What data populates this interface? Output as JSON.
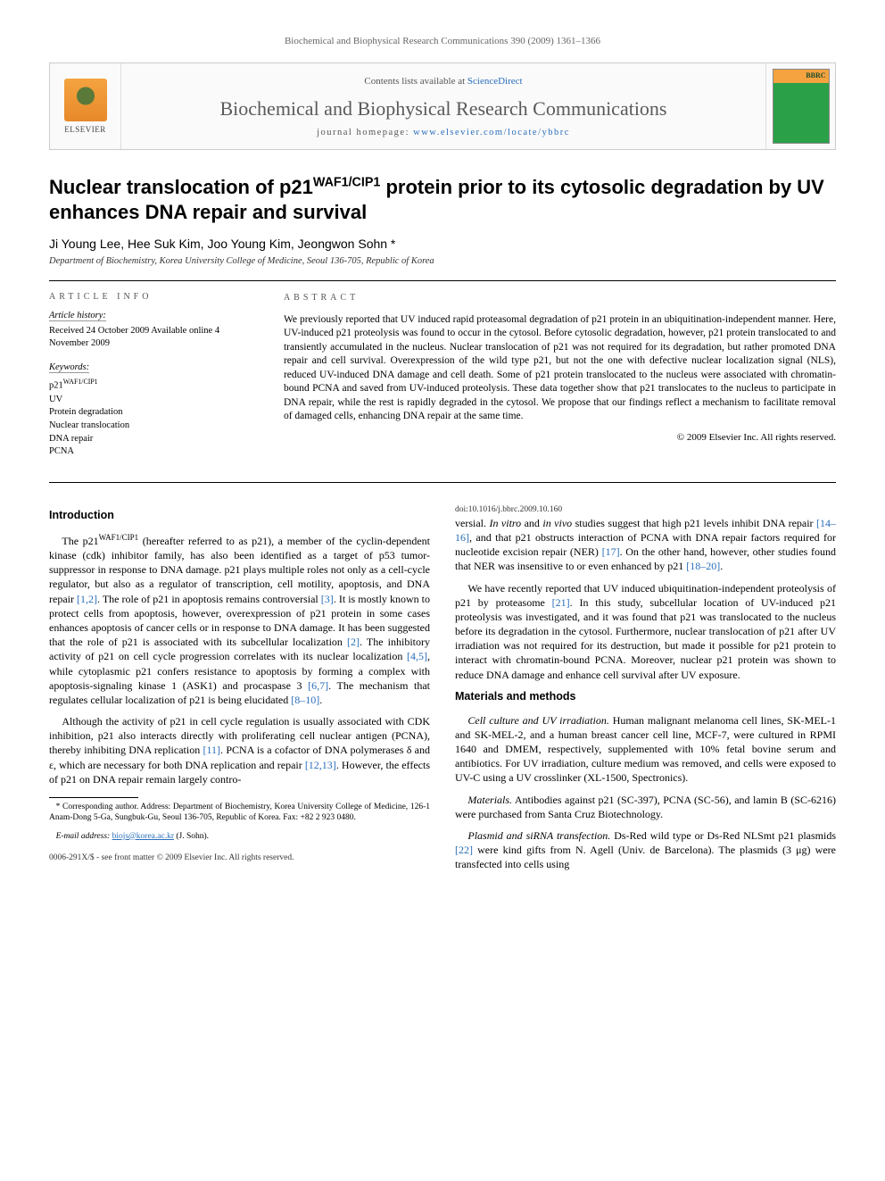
{
  "running_head": "Biochemical and Biophysical Research Communications 390 (2009) 1361–1366",
  "topbar": {
    "contents_prefix": "Contents lists available at ",
    "contents_link": "ScienceDirect",
    "journal_name": "Biochemical and Biophysical Research Communications",
    "homepage_prefix": "journal homepage: ",
    "homepage_url": "www.elsevier.com/locate/ybbrc",
    "publisher": "ELSEVIER",
    "cover_badge": "BBRC"
  },
  "title_html": "Nuclear translocation of p21<sup>WAF1/CIP1</sup> protein prior to its cytosolic degradation by UV enhances DNA repair and survival",
  "authors": "Ji Young Lee, Hee Suk Kim, Joo Young Kim, Jeongwon Sohn *",
  "affiliation": "Department of Biochemistry, Korea University College of Medicine, Seoul 136-705, Republic of Korea",
  "info": {
    "label": "ARTICLE INFO",
    "history_head": "Article history:",
    "history_body": "Received 24 October 2009\nAvailable online 4 November 2009",
    "keywords_head": "Keywords:",
    "keywords": [
      "p21^{WAF1/CIP1}",
      "UV",
      "Protein degradation",
      "Nuclear translocation",
      "DNA repair",
      "PCNA"
    ]
  },
  "abstract": {
    "label": "ABSTRACT",
    "text": "We previously reported that UV induced rapid proteasomal degradation of p21 protein in an ubiquitination-independent manner. Here, UV-induced p21 proteolysis was found to occur in the cytosol. Before cytosolic degradation, however, p21 protein translocated to and transiently accumulated in the nucleus. Nuclear translocation of p21 was not required for its degradation, but rather promoted DNA repair and cell survival. Overexpression of the wild type p21, but not the one with defective nuclear localization signal (NLS), reduced UV-induced DNA damage and cell death. Some of p21 protein translocated to the nucleus were associated with chromatin-bound PCNA and saved from UV-induced proteolysis. These data together show that p21 translocates to the nucleus to participate in DNA repair, while the rest is rapidly degraded in the cytosol. We propose that our findings reflect a mechanism to facilitate removal of damaged cells, enhancing DNA repair at the same time.",
    "copyright": "© 2009 Elsevier Inc. All rights reserved."
  },
  "sections": {
    "intro_head": "Introduction",
    "intro_p1": "The p21^{WAF1/CIP1} (hereafter referred to as p21), a member of the cyclin-dependent kinase (cdk) inhibitor family, has also been identified as a target of p53 tumor-suppressor in response to DNA damage. p21 plays multiple roles not only as a cell-cycle regulator, but also as a regulator of transcription, cell motility, apoptosis, and DNA repair [1,2]. The role of p21 in apoptosis remains controversial [3]. It is mostly known to protect cells from apoptosis, however, overexpression of p21 protein in some cases enhances apoptosis of cancer cells or in response to DNA damage. It has been suggested that the role of p21 is associated with its subcellular localization [2]. The inhibitory activity of p21 on cell cycle progression correlates with its nuclear localization [4,5], while cytoplasmic p21 confers resistance to apoptosis by forming a complex with apoptosis-signaling kinase 1 (ASK1) and procaspase 3 [6,7]. The mechanism that regulates cellular localization of p21 is being elucidated [8–10].",
    "intro_p2": "Although the activity of p21 in cell cycle regulation is usually associated with CDK inhibition, p21 also interacts directly with proliferating cell nuclear antigen (PCNA), thereby inhibiting DNA replication [11]. PCNA is a cofactor of DNA polymerases δ and ε, which are necessary for both DNA replication and repair [12,13]. However, the effects of p21 on DNA repair remain largely controversial. In vitro and in vivo studies suggest that high p21 levels inhibit DNA repair [14–16], and that p21 obstructs interaction of PCNA with DNA repair factors required for nucleotide excision repair (NER) [17]. On the other hand, however, other studies found that NER was insensitive to or even enhanced by p21 [18–20].",
    "intro_p3": "We have recently reported that UV induced ubiquitination-independent proteolysis of p21 by proteasome [21]. In this study, subcellular location of UV-induced p21 proteolysis was investigated, and it was found that p21 was translocated to the nucleus before its degradation in the cytosol. Furthermore, nuclear translocation of p21 after UV irradiation was not required for its destruction, but made it possible for p21 protein to interact with chromatin-bound PCNA. Moreover, nuclear p21 protein was shown to reduce DNA damage and enhance cell survival after UV exposure.",
    "mm_head": "Materials and methods",
    "mm_p1": "Cell culture and UV irradiation. Human malignant melanoma cell lines, SK-MEL-1 and SK-MEL-2, and a human breast cancer cell line, MCF-7, were cultured in RPMI 1640 and DMEM, respectively, supplemented with 10% fetal bovine serum and antibiotics. For UV irradiation, culture medium was removed, and cells were exposed to UV-C using a UV crosslinker (XL-1500, Spectronics).",
    "mm_p2": "Materials. Antibodies against p21 (SC-397), PCNA (SC-56), and lamin B (SC-6216) were purchased from Santa Cruz Biotechnology.",
    "mm_p3": "Plasmid and siRNA transfection. Ds-Red wild type or Ds-Red NLSmt p21 plasmids [22] were kind gifts from N. Agell (Univ. de Barcelona). The plasmids (3 μg) were transfected into cells using"
  },
  "footnotes": {
    "corr": "* Corresponding author. Address: Department of Biochemistry, Korea University College of Medicine, 126-1 Anam-Dong 5-Ga, Sungbuk-Gu, Seoul 136-705, Republic of Korea. Fax: +82 2 923 0480.",
    "email_label": "E-mail address:",
    "email": "biojs@korea.ac.kr",
    "email_who": "(J. Sohn)."
  },
  "doi": {
    "line1": "0006-291X/$ - see front matter © 2009 Elsevier Inc. All rights reserved.",
    "line2": "doi:10.1016/j.bbrc.2009.10.160"
  },
  "colors": {
    "link": "#2a6ebb",
    "rule": "#000000",
    "muted": "#666666"
  }
}
